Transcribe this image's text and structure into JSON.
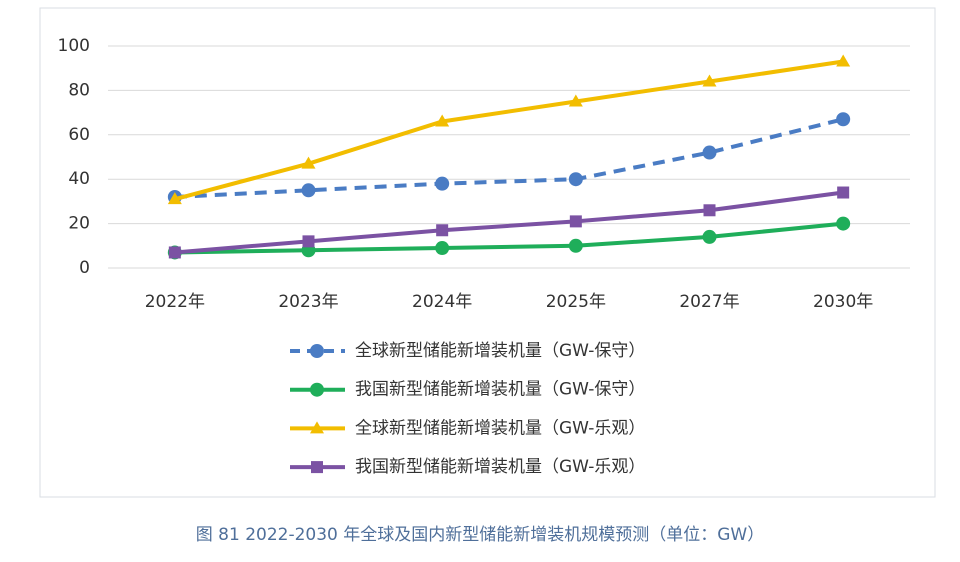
{
  "chart_data": {
    "type": "line",
    "caption": "图 81   2022-2030 年全球及国内新型储能新增装机规模预测（单位：GW）",
    "categories": [
      "2022年",
      "2023年",
      "2024年",
      "2025年",
      "2027年",
      "2030年"
    ],
    "series": [
      {
        "name": "全球新型储能新增装机量（GW-保守）",
        "color": "#4a7cc4",
        "marker": "circle",
        "dashed": true,
        "values": [
          32,
          35,
          38,
          40,
          52,
          67
        ]
      },
      {
        "name": "我国新型储能新增装机量（GW-保守）",
        "color": "#1fae5a",
        "marker": "circle",
        "dashed": false,
        "values": [
          7,
          8,
          9,
          10,
          14,
          20
        ]
      },
      {
        "name": "全球新型储能新增装机量（GW-乐观）",
        "color": "#f2bd00",
        "marker": "triangle",
        "dashed": false,
        "values": [
          31,
          47,
          66,
          75,
          84,
          93
        ]
      },
      {
        "name": "我国新型储能新增装机量（GW-乐观）",
        "color": "#7b52a3",
        "marker": "square",
        "dashed": false,
        "values": [
          7,
          12,
          17,
          21,
          26,
          34
        ]
      }
    ],
    "ylim": [
      0,
      100
    ],
    "yticks": [
      0,
      20,
      40,
      60,
      80,
      100
    ],
    "grid": true
  }
}
